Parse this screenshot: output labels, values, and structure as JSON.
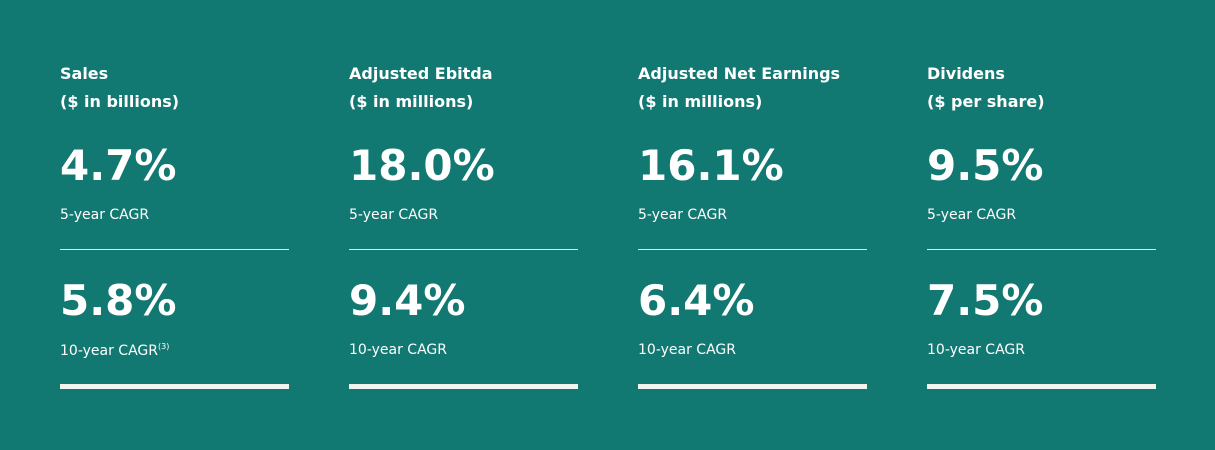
{
  "columns": [
    {
      "title": [
        "Sales",
        "($ in billions)"
      ],
      "metrics": [
        {
          "value": "4.7%",
          "label": "5-year CAGR"
        },
        {
          "value": "5.8%",
          "label": "10-year CAGR",
          "footnote": "(3)"
        }
      ]
    },
    {
      "title": [
        "Adjusted Ebitda",
        "($ in millions)"
      ],
      "metrics": [
        {
          "value": "18.0%",
          "label": "5-year CAGR"
        },
        {
          "value": "9.4%",
          "label": "10-year CAGR"
        }
      ]
    },
    {
      "title": [
        "Adjusted Net Earnings",
        "($ in millions)"
      ],
      "metrics": [
        {
          "value": "16.1%",
          "label": "5-year CAGR"
        },
        {
          "value": "6.4%",
          "label": "10-year CAGR"
        }
      ]
    },
    {
      "title": [
        "Dividens",
        "($ per share)"
      ],
      "metrics": [
        {
          "value": "9.5%",
          "label": "5-year CAGR"
        },
        {
          "value": "7.5%",
          "label": "10-year CAGR"
        }
      ]
    }
  ]
}
